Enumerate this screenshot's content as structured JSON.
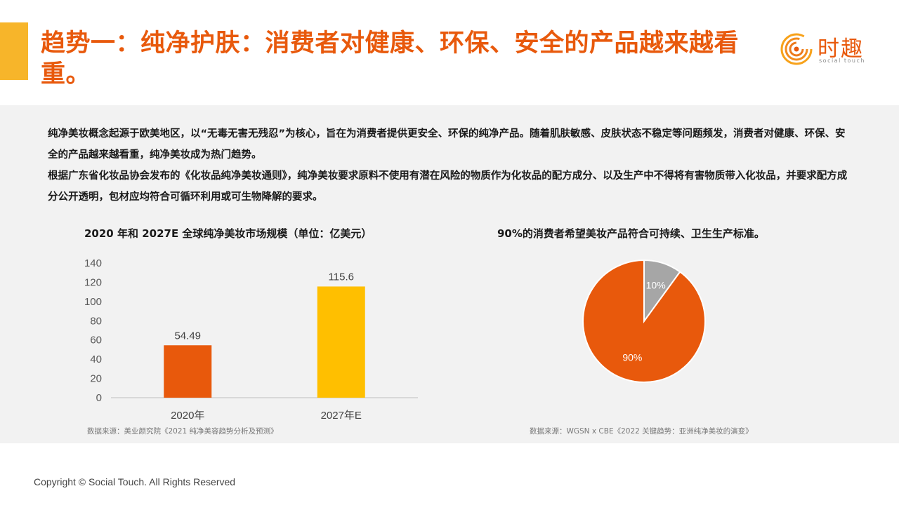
{
  "header": {
    "title": "趋势一：纯净护肤：消费者对健康、环保、安全的产品越来越看重。",
    "logo_cn": "时趣",
    "logo_en": "social touch"
  },
  "intro": {
    "p1": "纯净美妆概念起源于欧美地区，以“无毒无害无残忍”为核心，旨在为消费者提供更安全、环保的纯净产品。随着肌肤敏感、皮肤状态不稳定等问题频发，消费者对健康、环保、安全的产品越来越看重，纯净美妆成为热门趋势。",
    "p2": "根据广东省化妆品协会发布的《化妆品纯净美妆通则》，纯净美妆要求原料不使用有潜在风险的物质作为化妆品的配方成分、以及生产中不得将有害物质带入化妆品，并要求配方成分公开透明，包材应均符合可循环利用或可生物降解的要求。"
  },
  "chart_data": [
    {
      "type": "bar",
      "title": "2020 年和 2027E 全球纯净美妆市场规模（单位：亿美元）",
      "categories": [
        "2020年",
        "2027年E"
      ],
      "values": [
        54.49,
        115.6
      ],
      "value_labels": [
        "54.49",
        "115.6"
      ],
      "colors": [
        "#E8590C",
        "#FFBF00"
      ],
      "ylim": [
        0,
        140
      ],
      "yticks": [
        0,
        20,
        40,
        60,
        80,
        100,
        120,
        140
      ],
      "grid": false,
      "source": "数据来源：美业颜究院《2021 纯净美容趋势分析及预测》"
    },
    {
      "type": "pie",
      "title": "90%的消费者希望美妆产品符合可持续、卫生生产标准。",
      "slices": [
        {
          "label": "10%",
          "value": 10,
          "color": "#A6A6A6"
        },
        {
          "label": "90%",
          "value": 90,
          "color": "#E8590C"
        }
      ],
      "source": "数据来源：WGSN x CBE《2022 关键趋势：亚洲纯净美妆的演变》"
    }
  ],
  "footer": {
    "copyright": "Copyright © Social Touch. All Rights Reserved"
  }
}
